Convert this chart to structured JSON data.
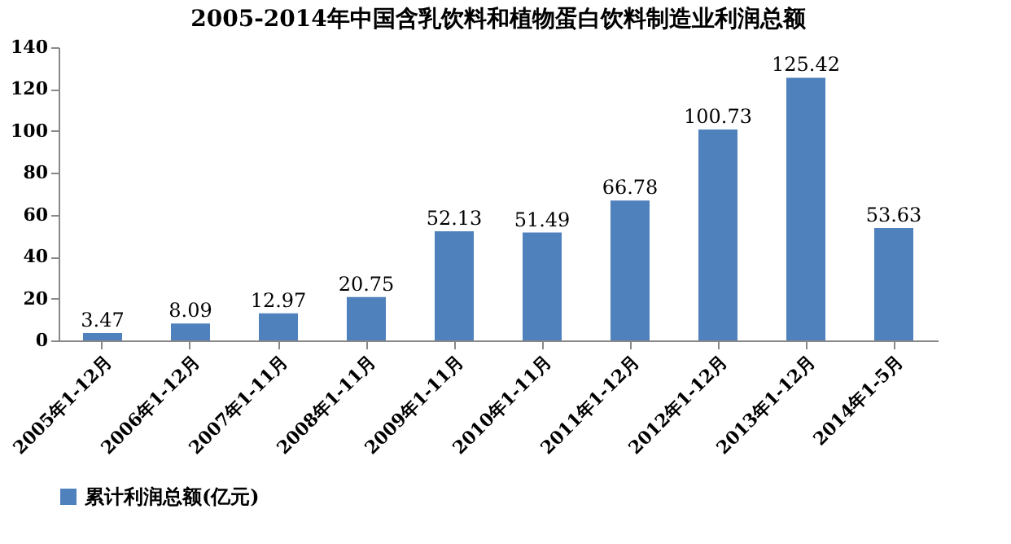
{
  "chart_data": {
    "type": "bar",
    "title": "2005-2014年中国含乳饮料和植物蛋白饮料制造业利润总额",
    "categories": [
      "2005年1-12月",
      "2006年1-12月",
      "2007年1-11月",
      "2008年1-11月",
      "2009年1-11月",
      "2010年1-11月",
      "2011年1-12月",
      "2012年1-12月",
      "2013年1-12月",
      "2014年1-5月"
    ],
    "series": [
      {
        "name": "累计利润总额(亿元)",
        "color": "#4f81bd",
        "values": [
          3.47,
          8.09,
          12.97,
          20.75,
          52.13,
          51.49,
          66.78,
          100.73,
          125.42,
          53.63
        ]
      }
    ],
    "ylim": [
      0,
      140
    ],
    "yticks": [
      0,
      20,
      40,
      60,
      80,
      100,
      120,
      140
    ],
    "grid": false,
    "legend": "bottom",
    "data_labels": true
  }
}
